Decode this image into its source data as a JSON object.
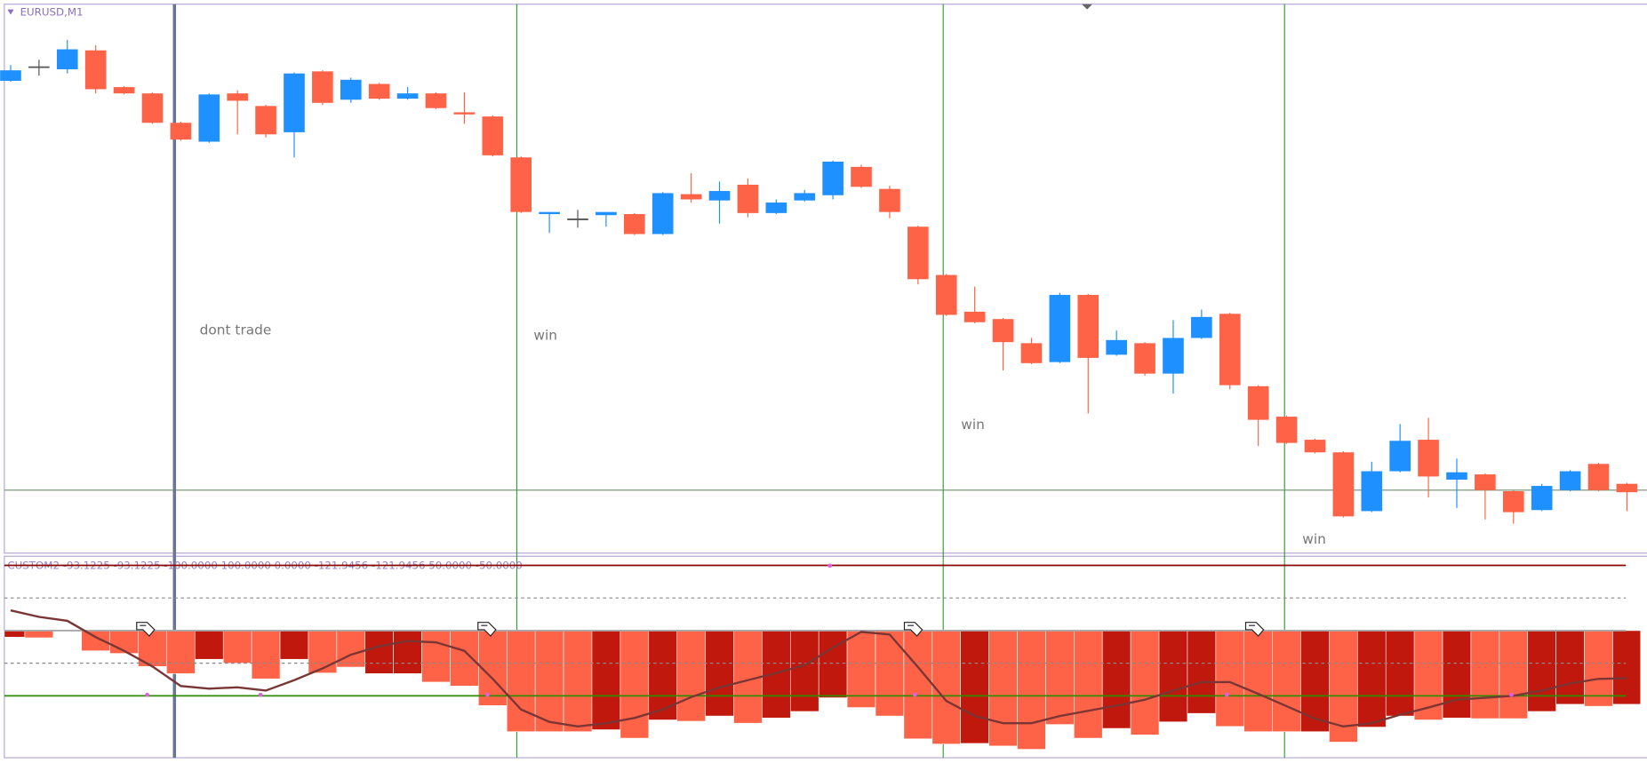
{
  "chart_data": [
    {
      "type": "candlestick",
      "title": "EURUSD,M1",
      "open": [
        450,
        463,
        461,
        479,
        444,
        438,
        410,
        392,
        438,
        426,
        401,
        459,
        432,
        447,
        433,
        438,
        420,
        416,
        377,
        323,
        318,
        322,
        323,
        304,
        342,
        336,
        351,
        324,
        336,
        341,
        368,
        347,
        311,
        265,
        230,
        223,
        200,
        182,
        246,
        189,
        200,
        171,
        205,
        228,
        159,
        130,
        108,
        96,
        40,
        78,
        108,
        70,
        75,
        59,
        41,
        60,
        85,
        66
      ],
      "high": [
        465,
        470,
        489,
        484,
        445,
        439,
        411,
        438,
        441,
        427,
        458,
        460,
        453,
        448,
        444,
        439,
        439,
        417,
        378,
        325,
        327,
        325,
        324,
        344,
        362,
        354,
        357,
        337,
        346,
        374,
        370,
        350,
        312,
        266,
        254,
        224,
        205,
        248,
        247,
        212,
        201,
        222,
        232,
        229,
        160,
        131,
        109,
        97,
        87,
        123,
        129,
        90,
        76,
        60,
        66,
        79,
        86,
        67
      ],
      "low": [
        449,
        455,
        457,
        438,
        437,
        409,
        393,
        391,
        399,
        396,
        377,
        427,
        429,
        432,
        432,
        423,
        409,
        378,
        324,
        305,
        310,
        311,
        303,
        303,
        334,
        314,
        320,
        323,
        335,
        337,
        348,
        319,
        256,
        226,
        219,
        174,
        180,
        181,
        133,
        188,
        169,
        152,
        204,
        156,
        102,
        104,
        95,
        34,
        39,
        77,
        53,
        43,
        32,
        28,
        40,
        59,
        59,
        40
      ],
      "close": [
        460,
        463,
        480,
        442,
        438,
        410,
        394,
        437,
        431,
        399,
        457,
        429,
        451,
        433,
        438,
        424,
        418,
        379,
        325,
        325,
        318,
        325,
        304,
        343,
        337,
        345,
        324,
        334,
        343,
        373,
        349,
        325,
        261,
        227,
        220,
        201,
        181,
        246,
        186,
        203,
        171,
        205,
        225,
        160,
        127,
        105,
        96,
        35,
        78,
        107,
        73,
        77,
        60,
        39,
        64,
        78,
        60,
        58
      ],
      "up_color": "#1e90ff",
      "down_color": "#ff6347",
      "flat_color": "#555555",
      "ylim": [
        0,
        522
      ],
      "annotations": [
        "dont trade",
        "win",
        "win",
        "win"
      ]
    },
    {
      "type": "indicator",
      "title": "CUSTOM2 -93.1225 -93.1225 -100.0000 100.0000 0.0000 -121.9456 -121.9456 50.0000 -50.0000",
      "histogram": {
        "values": [
          -10,
          -11,
          null,
          -31,
          -35,
          -55,
          -66,
          -44,
          -50,
          -74,
          -44,
          -65,
          -56,
          -66,
          -66,
          -79,
          -85,
          -115,
          -155,
          -155,
          -155,
          -152,
          -165,
          -137,
          -139,
          -131,
          -142,
          -134,
          -124,
          -103,
          -118,
          -131,
          -166,
          -174,
          -173,
          -177,
          -182,
          -144,
          -165,
          -150,
          -160,
          -140,
          -127,
          -147,
          -155,
          -155,
          -155,
          -171,
          -148,
          -131,
          -137,
          -134,
          -135,
          -135,
          -124,
          -113,
          -116,
          -113
        ],
        "colors": [
          "#c0180c",
          "#ff6347",
          null,
          "#ff6347",
          "#ff6347",
          "#ff6347",
          "#ff6347",
          "#c0180c",
          "#ff6347",
          "#ff6347",
          "#c0180c",
          "#ff6347",
          "#ff6347",
          "#c0180c",
          "#c0180c",
          "#ff6347",
          "#ff6347",
          "#ff6347",
          "#ff6347",
          "#ff6347",
          "#ff6347",
          "#c0180c",
          "#ff6347",
          "#c0180c",
          "#ff6347",
          "#c0180c",
          "#ff6347",
          "#c0180c",
          "#c0180c",
          "#c0180c",
          "#ff6347",
          "#ff6347",
          "#ff6347",
          "#ff6347",
          "#c0180c",
          "#ff6347",
          "#ff6347",
          "#ff6347",
          "#ff6347",
          "#c0180c",
          "#ff6347",
          "#c0180c",
          "#c0180c",
          "#ff6347",
          "#ff6347",
          "#ff6347",
          "#c0180c",
          "#ff6347",
          "#c0180c",
          "#c0180c",
          "#ff6347",
          "#c0180c",
          "#ff6347",
          "#ff6347",
          "#c0180c",
          "#c0180c",
          "#ff6347",
          "#c0180c"
        ]
      },
      "line": {
        "values": [
          31,
          21,
          15,
          -10,
          -31,
          -55,
          -85,
          -89,
          -87,
          -92,
          -76,
          -58,
          -37,
          -24,
          -16,
          -18,
          -31,
          -74,
          -121,
          -140,
          -147,
          -142,
          -134,
          -121,
          -102,
          -87,
          -76,
          -65,
          -53,
          -26,
          -2,
          -6,
          -56,
          -108,
          -131,
          -142,
          -142,
          -131,
          -123,
          -115,
          -106,
          -92,
          -79,
          -79,
          -97,
          -116,
          -135,
          -147,
          -142,
          -129,
          -118,
          -106,
          -103,
          -100,
          -92,
          -81,
          -74,
          -73
        ],
        "color": "#7a3535"
      },
      "levels": [
        100,
        50,
        0,
        -50,
        -100
      ],
      "level_colors": [
        "#8b0000",
        "#888888",
        "#aaaaaa",
        "#888888",
        "#2e8b00"
      ],
      "level_dashed": [
        false,
        true,
        false,
        true,
        false
      ],
      "ylim": [
        -195,
        114
      ]
    }
  ]
}
